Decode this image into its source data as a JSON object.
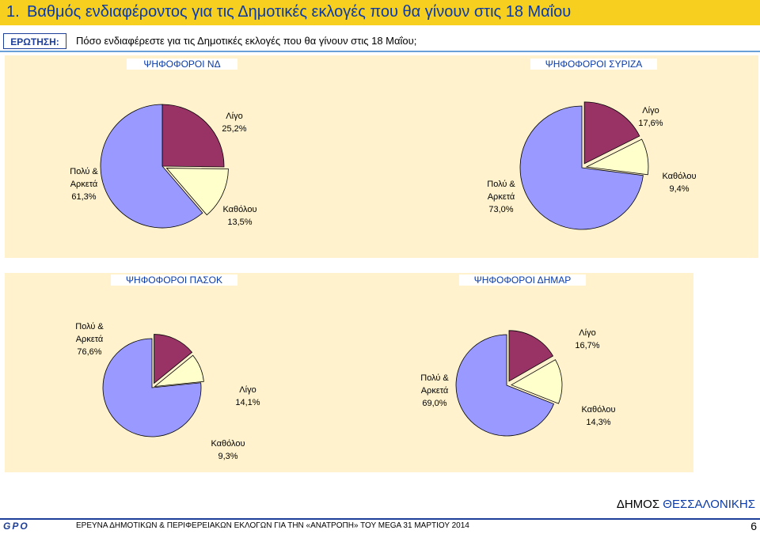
{
  "title": {
    "number": "1.",
    "text": "Βαθμός ενδιαφέροντος για τις Δημοτικές εκλογές που θα γίνουν στις 18 Μαΐου"
  },
  "question": {
    "label": "ΕΡΩΤΗΣΗ:",
    "text": "Πόσο ενδιαφέρεστε για τις Δημοτικές εκλογές που θα γίνουν στις 18 Μαΐου;"
  },
  "colors": {
    "title_bg": "#f7cf1e",
    "title_text": "#0a3aa8",
    "panel_bg": "#fff2cc",
    "polu": "#9999ff",
    "ligo": "#993366",
    "katholou": "#ffffcc"
  },
  "chart_data": [
    {
      "type": "pie",
      "title": "ΨΗΦΟΦΟΡΟΙ ΝΔ",
      "slices": [
        {
          "label": "Λίγο",
          "value": 25.2,
          "value_text": "25,2%"
        },
        {
          "label": "Καθόλου",
          "value": 13.5,
          "value_text": "13,5%"
        },
        {
          "label": "Πολύ & Αρκετά",
          "value": 61.3,
          "value_text": "61,3%"
        }
      ]
    },
    {
      "type": "pie",
      "title": "ΨΗΦΟΦΟΡΟΙ ΣΥΡΙΖΑ",
      "slices": [
        {
          "label": "Λίγο",
          "value": 17.6,
          "value_text": "17,6%"
        },
        {
          "label": "Καθόλου",
          "value": 9.4,
          "value_text": "9,4%"
        },
        {
          "label": "Πολύ & Αρκετά",
          "value": 73.0,
          "value_text": "73,0%"
        }
      ]
    },
    {
      "type": "pie",
      "title": "ΨΗΦΟΦΟΡΟΙ ΠΑΣΟΚ",
      "slices": [
        {
          "label": "Λίγο",
          "value": 14.1,
          "value_text": "14,1%"
        },
        {
          "label": "Καθόλου",
          "value": 9.3,
          "value_text": "9,3%"
        },
        {
          "label": "Πολύ & Αρκετά",
          "value": 76.6,
          "value_text": "76,6%"
        }
      ]
    },
    {
      "type": "pie",
      "title": "ΨΗΦΟΦΟΡΟΙ ΔΗΜΑΡ",
      "slices": [
        {
          "label": "Λίγο",
          "value": 16.7,
          "value_text": "16,7%"
        },
        {
          "label": "Καθόλου",
          "value": 14.3,
          "value_text": "14,3%"
        },
        {
          "label": "Πολύ & Αρκετά",
          "value": 69.0,
          "value_text": "69,0%"
        }
      ]
    }
  ],
  "footer": {
    "dhmos": "ΔΗΜΟΣ",
    "city": "ΘΕΣΣΑΛΟΝΙΚΗΣ",
    "logo": "GPO",
    "survey": "ΕΡΕΥΝΑ ΔΗΜΟΤΙΚΩΝ & ΠΕΡΙΦΕΡΕΙΑΚΩΝ ΕΚΛΟΓΩΝ ΓΙΑ ΤΗΝ «ΑΝΑΤΡΟΠΗ» ΤΟΥ MEGA  31 ΜΑΡΤΙΟΥ 2014",
    "page": "6"
  }
}
